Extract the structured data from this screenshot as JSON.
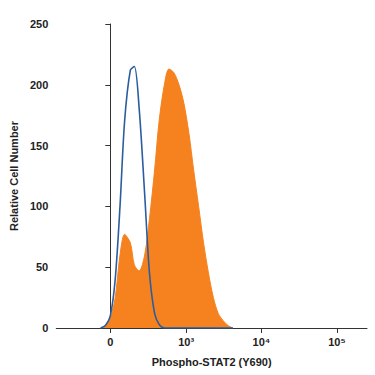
{
  "chart_data": {
    "type": "line",
    "x_label": "Phospho-STAT2 (Y690)",
    "y_label": "Relative Cell Number",
    "x": [
      -60,
      -30,
      0,
      30,
      60,
      90,
      130,
      160,
      200,
      250,
      300,
      360,
      420,
      500,
      580,
      680,
      800,
      930,
      1090,
      1260,
      1470,
      1710,
      1990,
      2310,
      2680,
      3120,
      3620,
      4200
    ],
    "series": [
      {
        "type": "line",
        "color": "#2b5d9e",
        "values": [
          0,
          2,
          10,
          40,
          100,
          170,
          212,
          215,
          180,
          110,
          45,
          12,
          3,
          0,
          0,
          0,
          0,
          0,
          0,
          0,
          0,
          0,
          0,
          0,
          0,
          0,
          0,
          0
        ]
      },
      {
        "type": "area",
        "color": "#f5821f",
        "values": [
          0,
          2,
          8,
          25,
          60,
          77,
          70,
          52,
          47,
          60,
          90,
          130,
          170,
          200,
          213,
          210,
          200,
          185,
          160,
          130,
          100,
          70,
          45,
          25,
          12,
          6,
          2,
          0
        ]
      }
    ],
    "xlim": [
      -500,
      250000
    ],
    "xticks": [
      0,
      {
        "value": 1000,
        "label": "10³"
      },
      {
        "value": 10000,
        "label": "10⁴"
      },
      {
        "value": 100000,
        "label": "10⁵"
      }
    ],
    "ylim": [
      0,
      250
    ],
    "yticks": [
      0,
      50,
      100,
      150,
      200,
      250
    ],
    "grid": false
  }
}
